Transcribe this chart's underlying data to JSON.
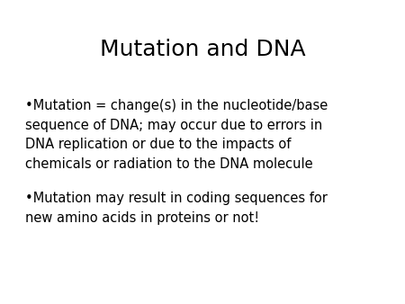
{
  "title": "Mutation and DNA",
  "title_fontsize": 18,
  "background_color": "#ffffff",
  "text_color": "#000000",
  "bullet1_line1": "•Mutation = change(s) in the nucleotide/base",
  "bullet1_line2": "sequence of DNA; may occur due to errors in",
  "bullet1_line3": "DNA replication or due to the impacts of",
  "bullet1_line4": "chemicals or radiation to the DNA molecule",
  "bullet2_line1": "•Mutation may result in coding sequences for",
  "bullet2_line2": "new amino acids in proteins or not!",
  "body_fontsize": 10.5,
  "linespacing": 1.55
}
